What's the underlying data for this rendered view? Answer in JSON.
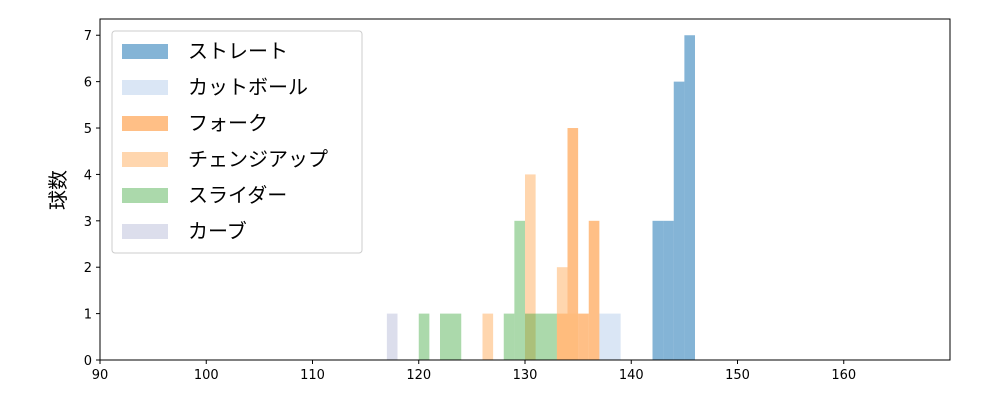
{
  "chart_data": {
    "type": "histogram",
    "title": "",
    "xlabel": "",
    "ylabel": "球数",
    "xlim": [
      90,
      170
    ],
    "ylim": [
      0,
      7.35
    ],
    "xticks": [
      90,
      100,
      110,
      120,
      130,
      140,
      150,
      160
    ],
    "yticks": [
      0,
      1,
      2,
      3,
      4,
      5,
      6,
      7
    ],
    "grid": false,
    "legend_position": "top-left",
    "series": [
      {
        "name": "ストレート",
        "color": "#1f77b4",
        "opacity": 0.55,
        "bins": [
          {
            "x0": 142.0,
            "x1": 143.0,
            "count": 3
          },
          {
            "x0": 143.0,
            "x1": 144.0,
            "count": 3
          },
          {
            "x0": 144.0,
            "x1": 145.0,
            "count": 6
          },
          {
            "x0": 145.0,
            "x1": 146.0,
            "count": 7
          }
        ]
      },
      {
        "name": "カットボール",
        "color": "#aec7e8",
        "opacity": 0.45,
        "bins": [
          {
            "x0": 137.0,
            "x1": 139.0,
            "count": 1
          }
        ]
      },
      {
        "name": "フォーク",
        "color": "#ff7f0e",
        "opacity": 0.5,
        "bins": [
          {
            "x0": 133.0,
            "x1": 134.0,
            "count": 1
          },
          {
            "x0": 134.0,
            "x1": 135.0,
            "count": 5
          },
          {
            "x0": 135.0,
            "x1": 136.0,
            "count": 1
          },
          {
            "x0": 136.0,
            "x1": 137.0,
            "count": 3
          }
        ]
      },
      {
        "name": "チェンジアップ",
        "color": "#ffbb78",
        "opacity": 0.6,
        "bins": [
          {
            "x0": 126.0,
            "x1": 127.0,
            "count": 1
          },
          {
            "x0": 130.0,
            "x1": 131.0,
            "count": 4
          },
          {
            "x0": 133.0,
            "x1": 134.0,
            "count": 2
          },
          {
            "x0": 134.0,
            "x1": 135.0,
            "count": 1
          }
        ]
      },
      {
        "name": "スライダー",
        "color": "#2ca02c",
        "opacity": 0.4,
        "bins": [
          {
            "x0": 120.0,
            "x1": 121.0,
            "count": 1
          },
          {
            "x0": 122.0,
            "x1": 124.0,
            "count": 1
          },
          {
            "x0": 128.0,
            "x1": 129.0,
            "count": 1
          },
          {
            "x0": 129.0,
            "x1": 130.0,
            "count": 3
          },
          {
            "x0": 130.0,
            "x1": 133.0,
            "count": 1
          }
        ]
      },
      {
        "name": "カーブ",
        "color": "#c5c8e0",
        "opacity": 0.6,
        "bins": [
          {
            "x0": 117.0,
            "x1": 118.0,
            "count": 1
          }
        ]
      }
    ]
  }
}
